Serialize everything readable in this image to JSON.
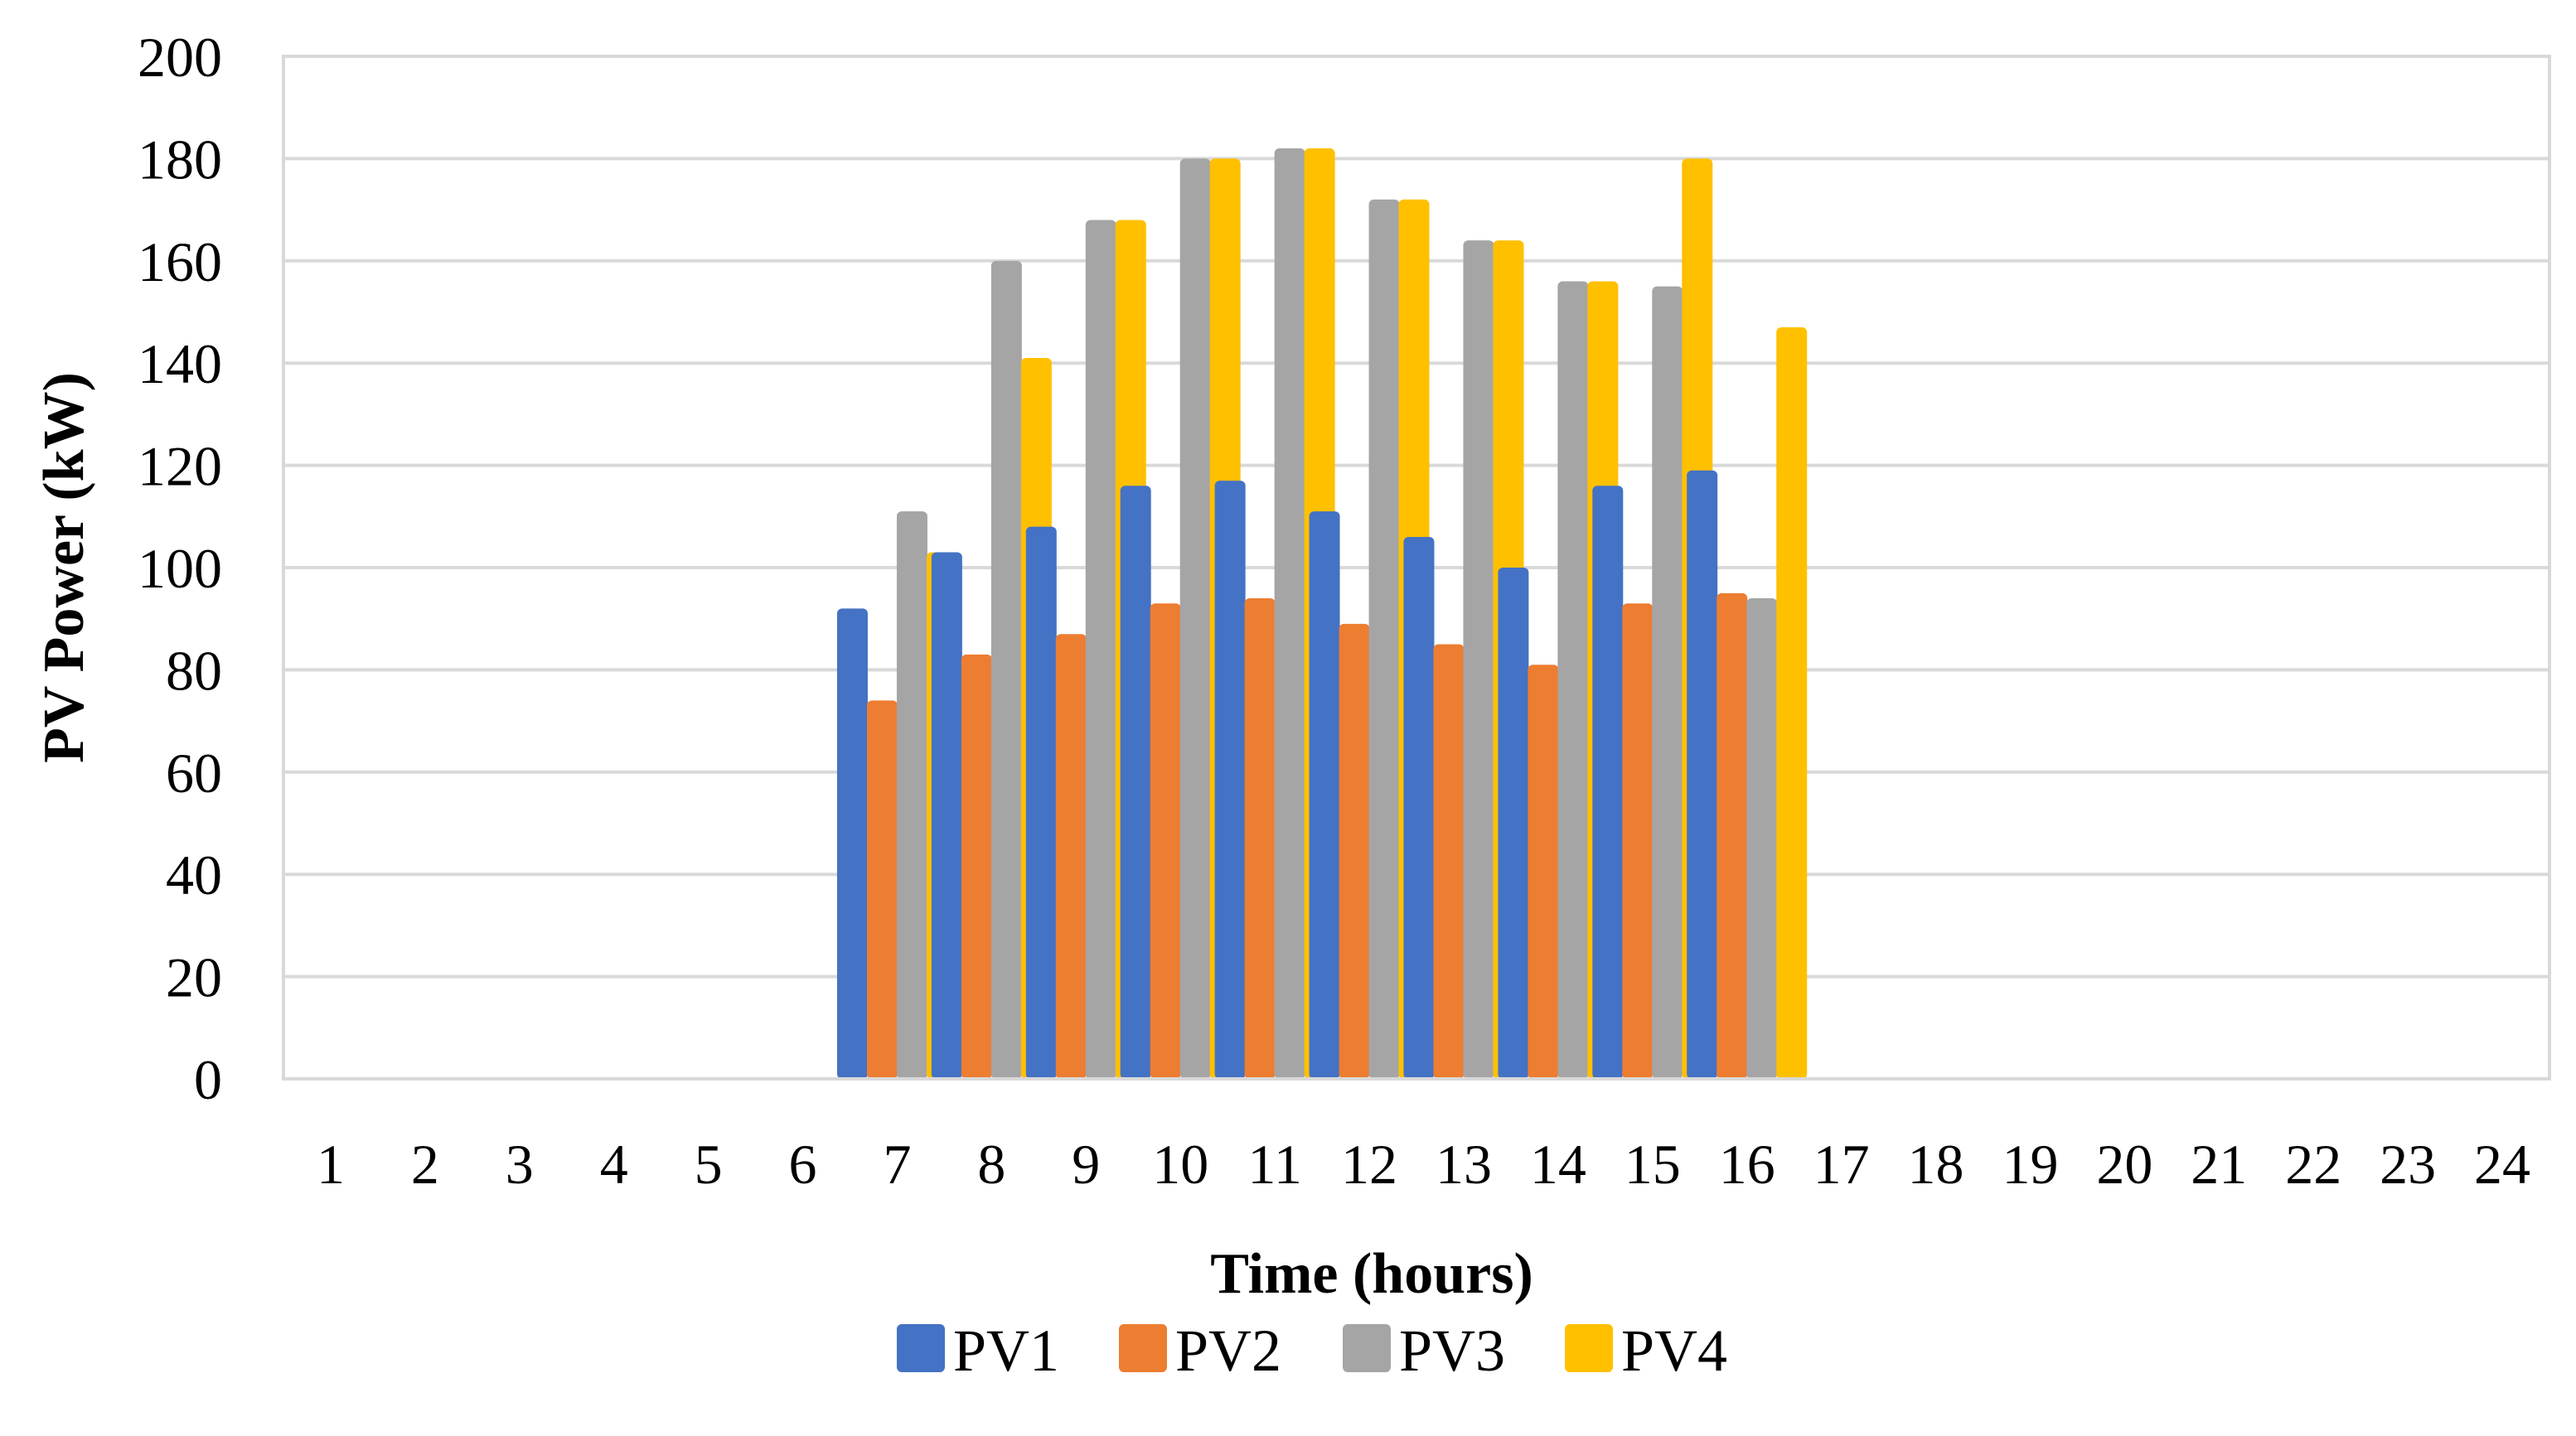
{
  "chart_data": {
    "type": "bar",
    "title": "",
    "xlabel": "Time (hours)",
    "ylabel": "PV Power (kW)",
    "ylim": [
      0,
      200
    ],
    "yticks": [
      "0",
      "20",
      "40",
      "60",
      "80",
      "100",
      "120",
      "140",
      "160",
      "180",
      "200"
    ],
    "grid": true,
    "legend_position": "bottom",
    "categories": [
      "1",
      "2",
      "3",
      "4",
      "5",
      "6",
      "7",
      "8",
      "9",
      "10",
      "11",
      "12",
      "13",
      "14",
      "15",
      "16",
      "17",
      "18",
      "19",
      "20",
      "21",
      "22",
      "23",
      "24"
    ],
    "series": [
      {
        "name": "PV1",
        "color": "#4472C4",
        "values": [
          0,
          0,
          0,
          0,
          0,
          0,
          92,
          103,
          108,
          116,
          117,
          111,
          106,
          100,
          116,
          119,
          0,
          0,
          0,
          0,
          0,
          0,
          0,
          0
        ]
      },
      {
        "name": "PV2",
        "color": "#ED7D31",
        "values": [
          0,
          0,
          0,
          0,
          0,
          0,
          74,
          83,
          87,
          93,
          94,
          89,
          85,
          81,
          93,
          95,
          0,
          0,
          0,
          0,
          0,
          0,
          0,
          0
        ]
      },
      {
        "name": "PV3",
        "color": "#A5A5A5",
        "values": [
          0,
          0,
          0,
          0,
          0,
          0,
          111,
          160,
          168,
          180,
          182,
          172,
          164,
          156,
          155,
          94,
          0,
          0,
          0,
          0,
          0,
          0,
          0,
          0
        ]
      },
      {
        "name": "PV4",
        "color": "#FFC000",
        "values": [
          0,
          0,
          0,
          0,
          0,
          0,
          103,
          141,
          168,
          180,
          182,
          172,
          164,
          156,
          180,
          147,
          0,
          0,
          0,
          0,
          0,
          0,
          0,
          0
        ]
      }
    ]
  }
}
